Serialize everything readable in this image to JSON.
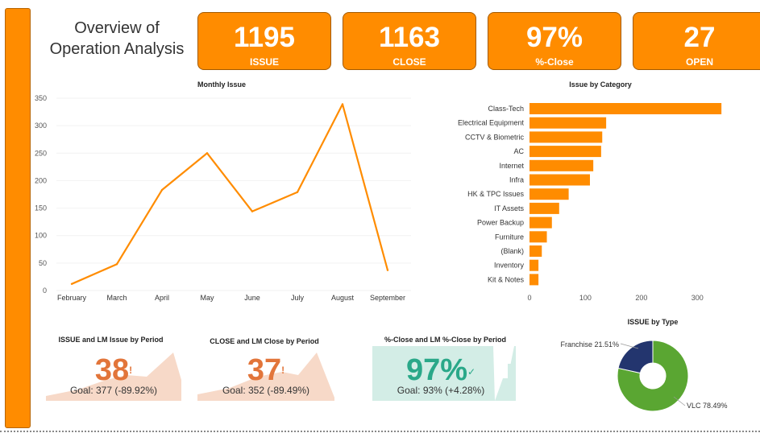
{
  "title": "Overview of\nOperation Analysis",
  "kpis": [
    {
      "value": "1195",
      "label": "ISSUE"
    },
    {
      "value": "1163",
      "label": "CLOSE"
    },
    {
      "value": "97%",
      "label": "%-Close"
    },
    {
      "value": "27",
      "label": "OPEN"
    }
  ],
  "colors": {
    "accent": "#ff8c00",
    "teal": "#2aa889",
    "peach": "#f7d9c8",
    "mint": "#d3ede6",
    "donut_vlc": "#5aa632",
    "donut_franchise": "#23356e"
  },
  "chart_data": [
    {
      "type": "line",
      "title": "Monthly Issue",
      "categories": [
        "February",
        "March",
        "April",
        "May",
        "June",
        "July",
        "August",
        "September"
      ],
      "values": [
        12,
        48,
        183,
        250,
        144,
        179,
        339,
        37
      ],
      "ylim": [
        0,
        350
      ],
      "yticks": [
        0,
        50,
        100,
        150,
        200,
        250,
        300,
        350
      ],
      "grid": false
    },
    {
      "type": "bar",
      "orientation": "horizontal",
      "title": "Issue by Category",
      "categories": [
        "Class-Tech",
        "Electrical Equipment",
        "CCTV & Biometric",
        "AC",
        "Internet",
        "Infra",
        "HK & TPC Issues",
        "IT Assets",
        "Power Backup",
        "Furniture",
        "(Blank)",
        "Inventory",
        "Kit & Notes"
      ],
      "values": [
        343,
        137,
        130,
        128,
        114,
        108,
        70,
        53,
        40,
        31,
        22,
        16,
        16
      ],
      "xlim": [
        0,
        350
      ],
      "xticks": [
        0,
        100,
        200,
        300
      ]
    },
    {
      "type": "pie",
      "title": "ISSUE by Type",
      "labels": [
        "VLC 78.49%",
        "Franchise 21.51%"
      ],
      "values": [
        78.49,
        21.51
      ]
    }
  ],
  "cards": [
    {
      "title": "ISSUE and LM Issue by Period",
      "value": "38",
      "mark": "!",
      "goal": "Goal: 377 (-89.92%)"
    },
    {
      "title": "CLOSE and LM Close by Period",
      "value": "37",
      "mark": "!",
      "goal": "Goal: 352 (-89.49%)"
    },
    {
      "title": "%-Close and LM %-Close by Period",
      "value": "97%",
      "mark": "✓",
      "goal": "Goal: 93% (+4.28%)"
    }
  ]
}
